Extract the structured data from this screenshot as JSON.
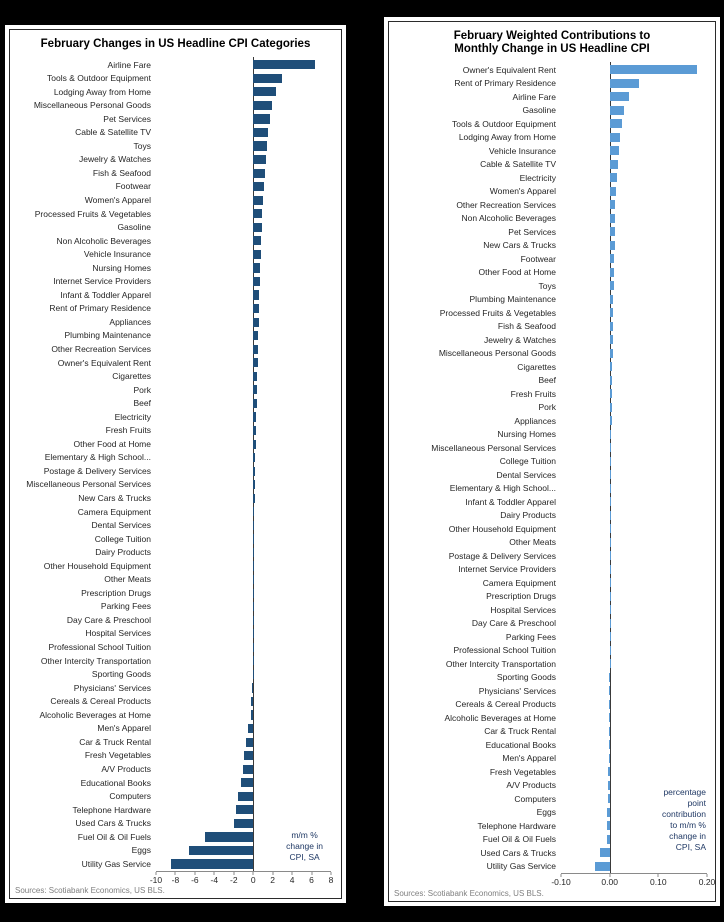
{
  "page": {
    "background_color": "#000000"
  },
  "chart_data": [
    {
      "type": "bar",
      "orientation": "horizontal",
      "title": "February Changes in US Headline CPI Categories",
      "bar_color": "#1F4E79",
      "xlim": [
        -10,
        8
      ],
      "ticks": [
        -10,
        -8,
        -6,
        -4,
        -2,
        0,
        2,
        4,
        6,
        8
      ],
      "tick_labels": [
        "-10",
        "-8",
        "-6",
        "-4",
        "-2",
        "0",
        "2",
        "4",
        "6",
        "8"
      ],
      "annotation": "m/m %\nchange in\nCPI, SA",
      "source": "Sources: Scotiabank Economics, US BLS.",
      "categories": [
        "Airline Fare",
        "Tools & Outdoor Equipment",
        "Lodging Away from Home",
        "Miscellaneous Personal Goods",
        "Pet Services",
        "Cable & Satellite TV",
        "Toys",
        "Jewelry & Watches",
        "Fish & Seafood",
        "Footwear",
        "Women's Apparel",
        "Processed Fruits & Vegetables",
        "Gasoline",
        "Non Alcoholic Beverages",
        "Vehicle Insurance",
        "Nursing Homes",
        "Internet Service Providers",
        "Infant & Toddler Apparel",
        "Rent of Primary Residence",
        "Appliances",
        "Plumbing Maintenance",
        "Other Recreation Services",
        "Owner's Equivalent Rent",
        "Cigarettes",
        "Pork",
        "Beef",
        "Electricity",
        "Fresh Fruits",
        "Other Food at Home",
        "Elementary & High School...",
        "Postage & Delivery Services",
        "Miscellaneous Personal Services",
        "New Cars & Trucks",
        "Camera Equipment",
        "Dental Services",
        "College Tuition",
        "Dairy Products",
        "Other Household Equipment",
        "Other Meats",
        "Prescription Drugs",
        "Parking Fees",
        "Day Care & Preschool",
        "Hospital Services",
        "Professional School Tuition",
        "Other Intercity Transportation",
        "Sporting Goods",
        "Physicians' Services",
        "Cereals & Cereal Products",
        "Alcoholic Beverages at Home",
        "Men's Apparel",
        "Car & Truck Rental",
        "Fresh Vegetables",
        "A/V Products",
        "Educational Books",
        "Computers",
        "Telephone Hardware",
        "Used Cars & Trucks",
        "Fuel Oil & Oil Fuels",
        "Eggs",
        "Utility Gas Service"
      ],
      "values": [
        6.4,
        3.0,
        2.3,
        1.9,
        1.7,
        1.5,
        1.4,
        1.3,
        1.2,
        1.1,
        1.0,
        0.9,
        0.9,
        0.8,
        0.8,
        0.7,
        0.7,
        0.6,
        0.6,
        0.6,
        0.5,
        0.5,
        0.5,
        0.4,
        0.4,
        0.4,
        0.3,
        0.3,
        0.3,
        0.2,
        0.2,
        0.2,
        0.2,
        0.1,
        0.1,
        0.1,
        0.1,
        0.1,
        0.1,
        0.05,
        0.05,
        0.04,
        0.03,
        0.02,
        0.01,
        -0.05,
        -0.1,
        -0.2,
        -0.2,
        -0.5,
        -0.7,
        -0.9,
        -1.1,
        -1.3,
        -1.6,
        -1.8,
        -2.0,
        -5.0,
        -6.6,
        -8.5
      ]
    },
    {
      "type": "bar",
      "orientation": "horizontal",
      "title": "February Weighted Contributions to\nMonthly Change in US Headline CPI",
      "bar_color": "#5B9BD5",
      "xlim": [
        -0.1,
        0.2
      ],
      "ticks": [
        -0.1,
        0.0,
        0.1,
        0.2
      ],
      "tick_labels": [
        "-0.10",
        "0.00",
        "0.10",
        "0.20"
      ],
      "annotation": "percentage\npoint\ncontribution\nto m/m %\nchange in\nCPI, SA",
      "source": "Sources: Scotiabank Economics, US BLS.",
      "categories": [
        "Owner's Equivalent Rent",
        "Rent of Primary Residence",
        "Airline Fare",
        "Gasoline",
        "Tools & Outdoor Equipment",
        "Lodging Away from Home",
        "Vehicle Insurance",
        "Cable & Satellite TV",
        "Electricity",
        "Women's Apparel",
        "Other Recreation Services",
        "Non Alcoholic Beverages",
        "Pet Services",
        "New Cars & Trucks",
        "Footwear",
        "Other Food at Home",
        "Toys",
        "Plumbing Maintenance",
        "Processed Fruits & Vegetables",
        "Fish & Seafood",
        "Jewelry & Watches",
        "Miscellaneous Personal Goods",
        "Cigarettes",
        "Beef",
        "Fresh Fruits",
        "Pork",
        "Appliances",
        "Nursing Homes",
        "Miscellaneous Personal Services",
        "College Tuition",
        "Dental Services",
        "Elementary & High School...",
        "Infant & Toddler Apparel",
        "Dairy Products",
        "Other Household Equipment",
        "Other Meats",
        "Postage & Delivery Services",
        "Internet Service Providers",
        "Camera Equipment",
        "Prescription Drugs",
        "Hospital Services",
        "Day Care & Preschool",
        "Parking Fees",
        "Professional School Tuition",
        "Other Intercity Transportation",
        "Sporting Goods",
        "Physicians' Services",
        "Cereals & Cereal Products",
        "Alcoholic Beverages at Home",
        "Car & Truck Rental",
        "Educational Books",
        "Men's Apparel",
        "Fresh Vegetables",
        "A/V Products",
        "Computers",
        "Eggs",
        "Telephone Hardware",
        "Fuel Oil & Oil Fuels",
        "Used Cars & Trucks",
        "Utility Gas Service"
      ],
      "values": [
        0.18,
        0.06,
        0.04,
        0.03,
        0.026,
        0.021,
        0.019,
        0.017,
        0.015,
        0.013,
        0.012,
        0.011,
        0.01,
        0.01,
        0.009,
        0.008,
        0.008,
        0.007,
        0.007,
        0.006,
        0.006,
        0.006,
        0.005,
        0.005,
        0.004,
        0.004,
        0.004,
        0.003,
        0.003,
        0.003,
        0.002,
        0.002,
        0.002,
        0.002,
        0.001,
        0.001,
        0.001,
        0.001,
        0.001,
        0.001,
        0.0005,
        0.0005,
        0.0002,
        0.0001,
        0.0001,
        -0.0005,
        -0.0005,
        -0.001,
        -0.001,
        -0.001,
        -0.002,
        -0.002,
        -0.003,
        -0.003,
        -0.004,
        -0.005,
        -0.005,
        -0.006,
        -0.02,
        -0.03
      ]
    }
  ]
}
